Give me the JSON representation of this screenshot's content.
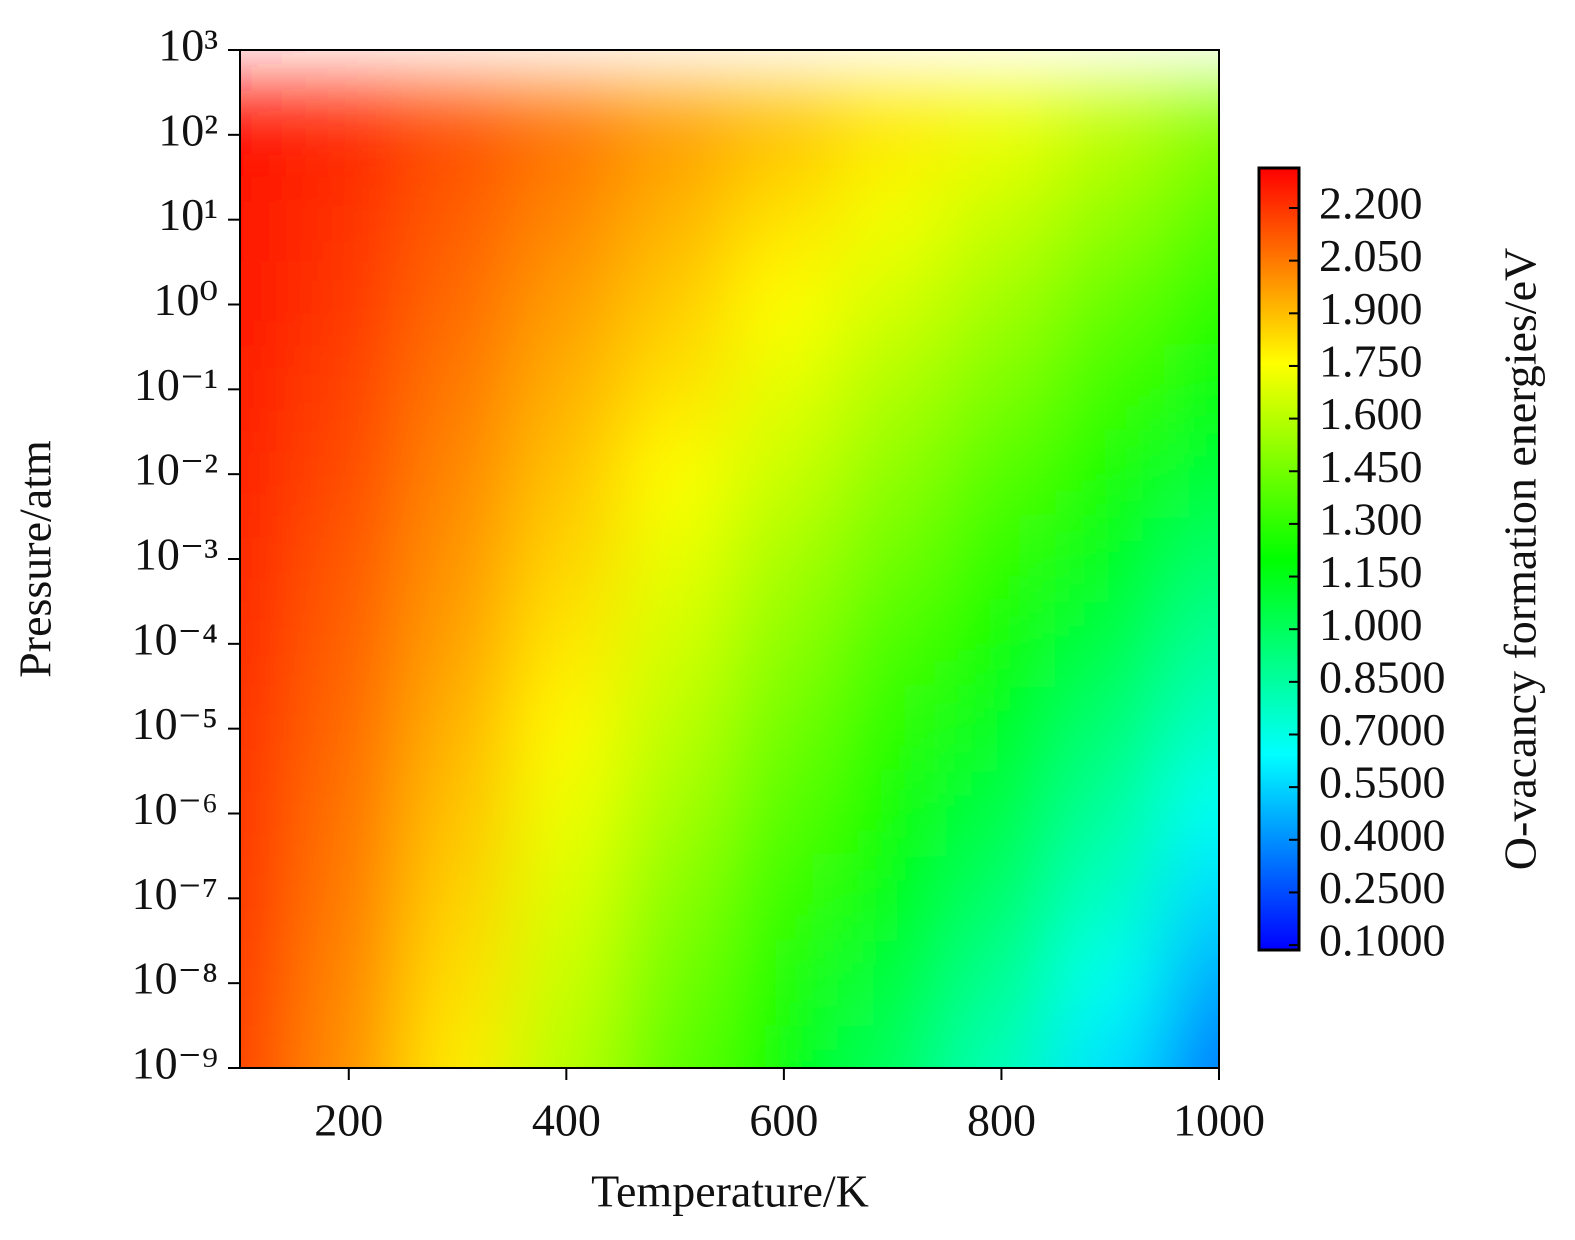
{
  "chart_data": {
    "type": "heatmap",
    "xlabel": "Temperature/K",
    "ylabel": "Pressure/atm",
    "colorbar_label": "O-vacancy formation energies/eV",
    "x": [
      100,
      200,
      300,
      400,
      500,
      600,
      700,
      800,
      900,
      1000
    ],
    "y": [
      1000,
      100,
      10,
      1,
      0.1,
      0.01,
      0.001,
      0.0001,
      1e-05,
      1e-06,
      1e-07,
      1e-08,
      1e-09
    ],
    "z": [
      [
        2.3,
        2.25,
        2.17,
        2.1,
        2.02,
        1.95,
        1.87,
        1.8,
        1.7,
        1.6
      ],
      [
        2.28,
        2.23,
        2.14,
        2.06,
        1.97,
        1.89,
        1.8,
        1.72,
        1.61,
        1.49
      ],
      [
        2.27,
        2.21,
        2.11,
        2.02,
        1.92,
        1.82,
        1.73,
        1.63,
        1.52,
        1.39
      ],
      [
        2.26,
        2.19,
        2.08,
        1.97,
        1.87,
        1.76,
        1.66,
        1.55,
        1.42,
        1.29
      ],
      [
        2.25,
        2.17,
        2.05,
        1.93,
        1.82,
        1.7,
        1.58,
        1.47,
        1.33,
        1.18
      ],
      [
        2.24,
        2.15,
        2.02,
        1.89,
        1.76,
        1.64,
        1.51,
        1.38,
        1.24,
        1.08
      ],
      [
        2.23,
        2.12,
        1.99,
        1.85,
        1.71,
        1.57,
        1.44,
        1.3,
        1.14,
        0.97
      ],
      [
        2.22,
        2.1,
        1.96,
        1.81,
        1.66,
        1.51,
        1.36,
        1.22,
        1.05,
        0.87
      ],
      [
        2.21,
        2.08,
        1.92,
        1.77,
        1.61,
        1.45,
        1.29,
        1.13,
        0.95,
        0.77
      ],
      [
        2.2,
        2.06,
        1.89,
        1.72,
        1.56,
        1.39,
        1.22,
        1.05,
        0.86,
        0.66
      ],
      [
        2.19,
        2.04,
        1.86,
        1.68,
        1.5,
        1.32,
        1.15,
        0.97,
        0.77,
        0.56
      ],
      [
        2.18,
        2.02,
        1.83,
        1.64,
        1.45,
        1.26,
        1.07,
        0.88,
        0.67,
        0.45
      ],
      [
        2.17,
        2.0,
        1.8,
        1.6,
        1.4,
        1.2,
        1.0,
        0.8,
        0.58,
        0.35
      ]
    ],
    "xlim": [
      100,
      1000
    ],
    "xticks": [
      200,
      400,
      600,
      800,
      1000
    ],
    "ylim": [
      1e-09,
      1000
    ],
    "ylog": true,
    "yticks": [
      {
        "value": 1000,
        "label": "10³"
      },
      {
        "value": 100,
        "label": "10²"
      },
      {
        "value": 10,
        "label": "10¹"
      },
      {
        "value": 1,
        "label": "10⁰"
      },
      {
        "value": 0.1,
        "label": "10⁻¹"
      },
      {
        "value": 0.01,
        "label": "10⁻²"
      },
      {
        "value": 0.001,
        "label": "10⁻³"
      },
      {
        "value": 0.0001,
        "label": "10⁻⁴"
      },
      {
        "value": 1e-05,
        "label": "10⁻⁵"
      },
      {
        "value": 1e-06,
        "label": "10⁻⁶"
      },
      {
        "value": 1e-07,
        "label": "10⁻⁷"
      },
      {
        "value": 1e-08,
        "label": "10⁻⁸"
      },
      {
        "value": 1e-09,
        "label": "10⁻⁹"
      }
    ],
    "clim": [
      0.086,
      2.314
    ],
    "colormap": [
      "#0000ff",
      "#00ffff",
      "#00ff00",
      "#ffff00",
      "#ff0000"
    ],
    "cticks": [
      {
        "value": 2.2,
        "label": "2.200"
      },
      {
        "value": 2.05,
        "label": "2.050"
      },
      {
        "value": 1.9,
        "label": "1.900"
      },
      {
        "value": 1.75,
        "label": "1.750"
      },
      {
        "value": 1.6,
        "label": "1.600"
      },
      {
        "value": 1.45,
        "label": "1.450"
      },
      {
        "value": 1.3,
        "label": "1.300"
      },
      {
        "value": 1.15,
        "label": "1.150"
      },
      {
        "value": 1.0,
        "label": "1.000"
      },
      {
        "value": 0.85,
        "label": "0.8500"
      },
      {
        "value": 0.7,
        "label": "0.7000"
      },
      {
        "value": 0.55,
        "label": "0.5500"
      },
      {
        "value": 0.4,
        "label": "0.4000"
      },
      {
        "value": 0.25,
        "label": "0.2500"
      },
      {
        "value": 0.1,
        "label": "0.1000"
      }
    ]
  }
}
